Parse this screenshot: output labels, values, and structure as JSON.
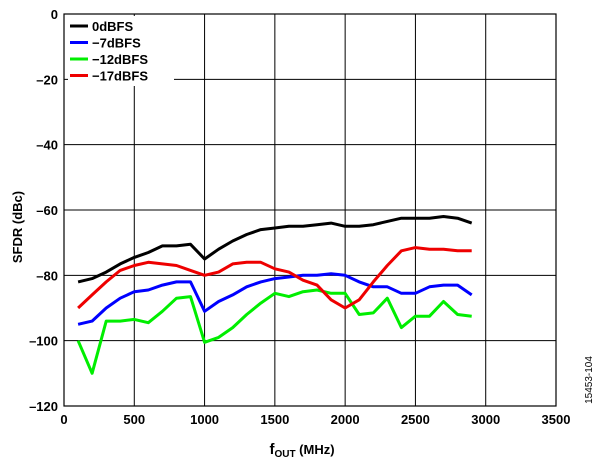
{
  "chart_data": {
    "type": "line",
    "xlabel_main": "f",
    "xlabel_sub": "OUT",
    "xlabel_unit": " (MHz)",
    "ylabel": "SFDR (dBc)",
    "xlim": [
      0,
      3500
    ],
    "ylim": [
      -120,
      0
    ],
    "xticks": [
      0,
      500,
      1000,
      1500,
      2000,
      2500,
      3000,
      3500
    ],
    "yticks": [
      0,
      -20,
      -40,
      -60,
      -80,
      -100,
      -120
    ],
    "grid": true,
    "legend_position": "top-left",
    "figure_id": "15453-104",
    "series": [
      {
        "name": "0dBFS",
        "color": "#000000",
        "x": [
          100,
          200,
          300,
          400,
          500,
          600,
          700,
          800,
          900,
          1000,
          1100,
          1200,
          1300,
          1400,
          1500,
          1600,
          1700,
          1800,
          1900,
          2000,
          2100,
          2200,
          2300,
          2400,
          2500,
          2600,
          2700,
          2800,
          2900
        ],
        "y": [
          -82,
          -81,
          -79,
          -76.5,
          -74.5,
          -73,
          -71,
          -71,
          -70.5,
          -75,
          -72,
          -69.5,
          -67.5,
          -66,
          -65.5,
          -65,
          -65,
          -64.5,
          -64,
          -65,
          -65,
          -64.5,
          -63.5,
          -62.5,
          -62.5,
          -62.5,
          -62,
          -62.5,
          -64
        ]
      },
      {
        "name": "−7dBFS",
        "color": "#0000ff",
        "x": [
          100,
          200,
          300,
          400,
          500,
          600,
          700,
          800,
          900,
          1000,
          1100,
          1200,
          1300,
          1400,
          1500,
          1600,
          1700,
          1800,
          1900,
          2000,
          2100,
          2200,
          2300,
          2400,
          2500,
          2600,
          2700,
          2800,
          2900
        ],
        "y": [
          -95,
          -94,
          -90,
          -87,
          -85,
          -84.5,
          -83,
          -82,
          -82,
          -91,
          -88,
          -86,
          -83.5,
          -82,
          -81,
          -80.5,
          -80,
          -80,
          -79.5,
          -80,
          -82,
          -83.5,
          -83.5,
          -85.5,
          -85.5,
          -83.5,
          -83,
          -83,
          -86
        ]
      },
      {
        "name": "−12dBFS",
        "color": "#00ee00",
        "x": [
          100,
          200,
          300,
          400,
          500,
          600,
          700,
          800,
          900,
          1000,
          1100,
          1200,
          1300,
          1400,
          1500,
          1600,
          1700,
          1800,
          1900,
          2000,
          2100,
          2200,
          2300,
          2400,
          2500,
          2600,
          2700,
          2800,
          2900
        ],
        "y": [
          -100,
          -110,
          -94,
          -94,
          -93.5,
          -94.5,
          -91,
          -87,
          -86.5,
          -100.5,
          -99,
          -96,
          -92,
          -88.5,
          -85.5,
          -86.5,
          -85,
          -84.5,
          -85.5,
          -85.5,
          -92,
          -91.5,
          -87,
          -96,
          -92.5,
          -92.5,
          -88,
          -92,
          -92.5
        ]
      },
      {
        "name": "−17dBFS",
        "color": "#ee0000",
        "x": [
          100,
          200,
          300,
          400,
          500,
          600,
          700,
          800,
          900,
          1000,
          1100,
          1200,
          1300,
          1400,
          1500,
          1600,
          1700,
          1800,
          1900,
          2000,
          2100,
          2200,
          2300,
          2400,
          2500,
          2600,
          2700,
          2800,
          2900
        ],
        "y": [
          -90,
          -86,
          -82,
          -78.5,
          -77,
          -76,
          -76.5,
          -77,
          -78.5,
          -80,
          -79,
          -76.5,
          -76,
          -76,
          -78,
          -79,
          -81.5,
          -83,
          -87.5,
          -90,
          -87.5,
          -82,
          -77,
          -72.5,
          -71.5,
          -72,
          -72,
          -72.5,
          -72.5
        ]
      }
    ]
  }
}
